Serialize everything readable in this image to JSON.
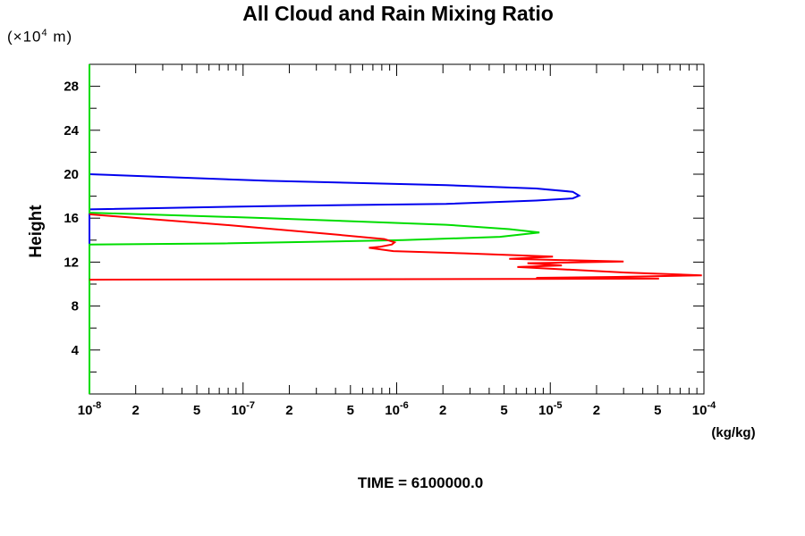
{
  "title": "All Cloud and Rain Mixing Ratio",
  "caption": "TIME = 6100000.0",
  "chart_data": {
    "type": "line",
    "title": "All Cloud and Rain Mixing Ratio",
    "xlabel": "(kg/kg)",
    "ylabel": "Height",
    "ylabel_unit": {
      "prefix": "(×10",
      "sup": "4",
      "suffix": " m)"
    },
    "x_scale": "log",
    "xlim": [
      1e-08,
      0.0001
    ],
    "grid": false,
    "legend": "none",
    "annotation": "TIME = 6100000.0",
    "x_axis": {
      "decade_exponents": [
        -8,
        -7,
        -6,
        -5,
        -4
      ],
      "labeled_minor_multiples": [
        2,
        5
      ],
      "unit": "(kg/kg)"
    },
    "y_axis": {
      "min": 0,
      "max": 30,
      "minor_step": 2,
      "major_step": 4,
      "major_labels": [
        4,
        8,
        12,
        16,
        20,
        24,
        28
      ],
      "title": "Height"
    },
    "series": [
      {
        "name": "blue",
        "color": "#0000ee",
        "points": [
          [
            1e-08,
            20.0
          ],
          [
            1.45e-07,
            19.4
          ],
          [
            2.1e-06,
            19.0
          ],
          [
            8.1e-06,
            18.7
          ],
          [
            1.4e-05,
            18.4
          ],
          [
            1.54e-05,
            18.05
          ],
          [
            1.4e-05,
            17.8
          ],
          [
            8.1e-06,
            17.6
          ],
          [
            2.1e-06,
            17.3
          ],
          [
            1.45e-07,
            17.1
          ],
          [
            1e-08,
            16.8
          ],
          [
            1e-08,
            13.65
          ]
        ]
      },
      {
        "name": "green",
        "color": "#00dd00",
        "points": [
          [
            1e-08,
            30
          ],
          [
            1e-08,
            16.5
          ],
          [
            1.45e-07,
            16.0
          ],
          [
            2.1e-06,
            15.4
          ],
          [
            5.4e-06,
            15.0
          ],
          [
            8.5e-06,
            14.7
          ],
          [
            4.7e-06,
            14.3
          ],
          [
            1.1e-06,
            14.0
          ],
          [
            7.5e-08,
            13.7
          ],
          [
            1e-08,
            13.6
          ],
          [
            1e-08,
            0
          ]
        ]
      },
      {
        "name": "red",
        "color": "#ff0000",
        "points": [
          [
            1e-08,
            16.35
          ],
          [
            7.5e-08,
            15.4
          ],
          [
            3.7e-07,
            14.55
          ],
          [
            8.3e-07,
            14.1
          ],
          [
            9.7e-07,
            13.8
          ],
          [
            9.3e-07,
            13.6
          ],
          [
            7.8e-07,
            13.4
          ],
          [
            6.6e-07,
            13.3
          ],
          [
            9.5e-07,
            13.0
          ],
          [
            2.8e-06,
            12.8
          ],
          [
            1.04e-05,
            12.5
          ],
          [
            5.4e-06,
            12.3
          ],
          [
            3e-05,
            12.05
          ],
          [
            7.1e-06,
            11.9
          ],
          [
            1.19e-05,
            11.7
          ],
          [
            6.1e-06,
            11.55
          ],
          [
            3.1e-05,
            11.05
          ],
          [
            9.7e-05,
            10.8
          ],
          [
            2.7e-05,
            10.65
          ],
          [
            8.1e-06,
            10.57
          ],
          [
            5.1e-05,
            10.5
          ],
          [
            1e-08,
            10.4
          ]
        ]
      }
    ]
  }
}
